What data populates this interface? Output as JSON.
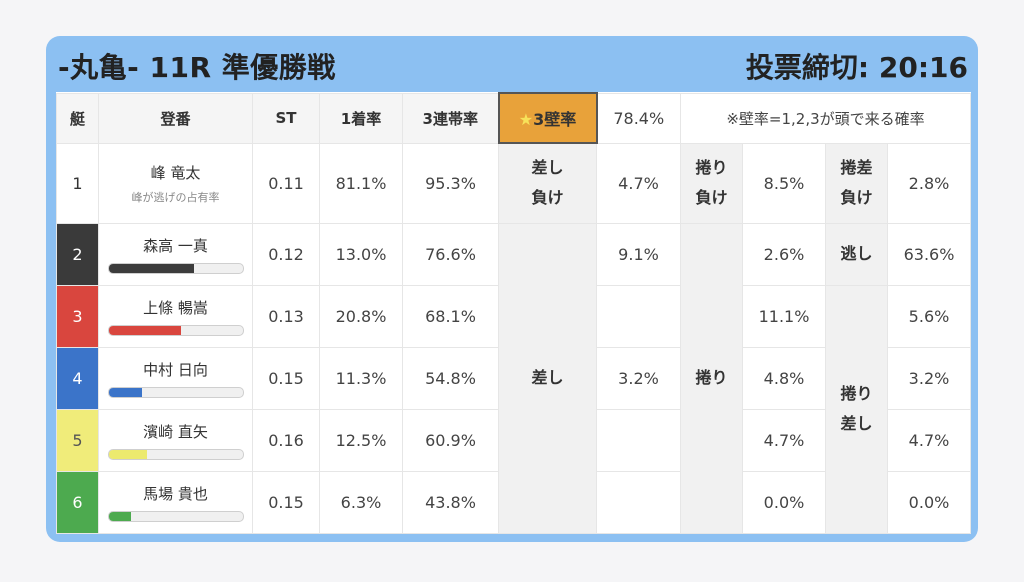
{
  "header": {
    "title": "-丸亀- 11R 準優勝戦",
    "deadline": "投票締切: 20:16"
  },
  "columns": {
    "boat": "艇",
    "racer": "登番",
    "st": "ST",
    "first_rate": "1着率",
    "top3_rate": "3連帯率",
    "wall_label": "3壁率",
    "wall_star": "★",
    "wall_rate": "78.4%",
    "note": "※壁率=1,2,3が頭で来る確率"
  },
  "rows": [
    {
      "boat": "1",
      "name": "峰 竜太",
      "sub": "峰が逃げの占有率",
      "st": "0.11",
      "first": "81.1%",
      "top3": "95.3%",
      "color": "#ffffff",
      "bar_color": "",
      "bar_pct": null
    },
    {
      "boat": "2",
      "name": "森高 一真",
      "st": "0.12",
      "first": "13.0%",
      "top3": "76.6%",
      "color": "#3a3a3a",
      "bar_color": "#3c3c3c",
      "bar_pct": 0.64
    },
    {
      "boat": "3",
      "name": "上條 暢嵩",
      "st": "0.13",
      "first": "20.8%",
      "top3": "68.1%",
      "color": "#d9463e",
      "bar_color": "#d9463e",
      "bar_pct": 0.54
    },
    {
      "boat": "4",
      "name": "中村 日向",
      "st": "0.15",
      "first": "11.3%",
      "top3": "54.8%",
      "color": "#3b74c9",
      "bar_color": "#3b74c9",
      "bar_pct": 0.25
    },
    {
      "boat": "5",
      "name": "濱崎 直矢",
      "st": "0.16",
      "first": "12.5%",
      "top3": "60.9%",
      "color": "#f0ec7a",
      "bar_color": "#ecea6e",
      "bar_pct": 0.29
    },
    {
      "boat": "6",
      "name": "馬場 貴也",
      "st": "0.15",
      "first": "6.3%",
      "top3": "43.8%",
      "color": "#4daa4f",
      "bar_color": "#4daa4f",
      "bar_pct": 0.17
    }
  ],
  "patterns": {
    "r1": {
      "sashi_make": "差し\n負け",
      "sashi_make_val": "4.7%",
      "makuri_make": "捲り\n負け",
      "makuri_make_val": "8.5%",
      "makurisashi_make": "捲差\n負け",
      "makurisashi_make_val": "2.8%"
    },
    "sashi_label": "差し",
    "makuri_label": "捲り",
    "nige_label": "逃し",
    "makurisashi_label": "捲り\n差し",
    "sashi_vals": [
      "9.1%",
      "",
      "3.2%",
      "",
      ""
    ],
    "makuri_vals": [
      "2.6%",
      "11.1%",
      "4.8%",
      "4.7%",
      "0.0%"
    ],
    "right_vals": [
      "63.6%",
      "5.6%",
      "3.2%",
      "4.7%",
      "0.0%"
    ]
  }
}
